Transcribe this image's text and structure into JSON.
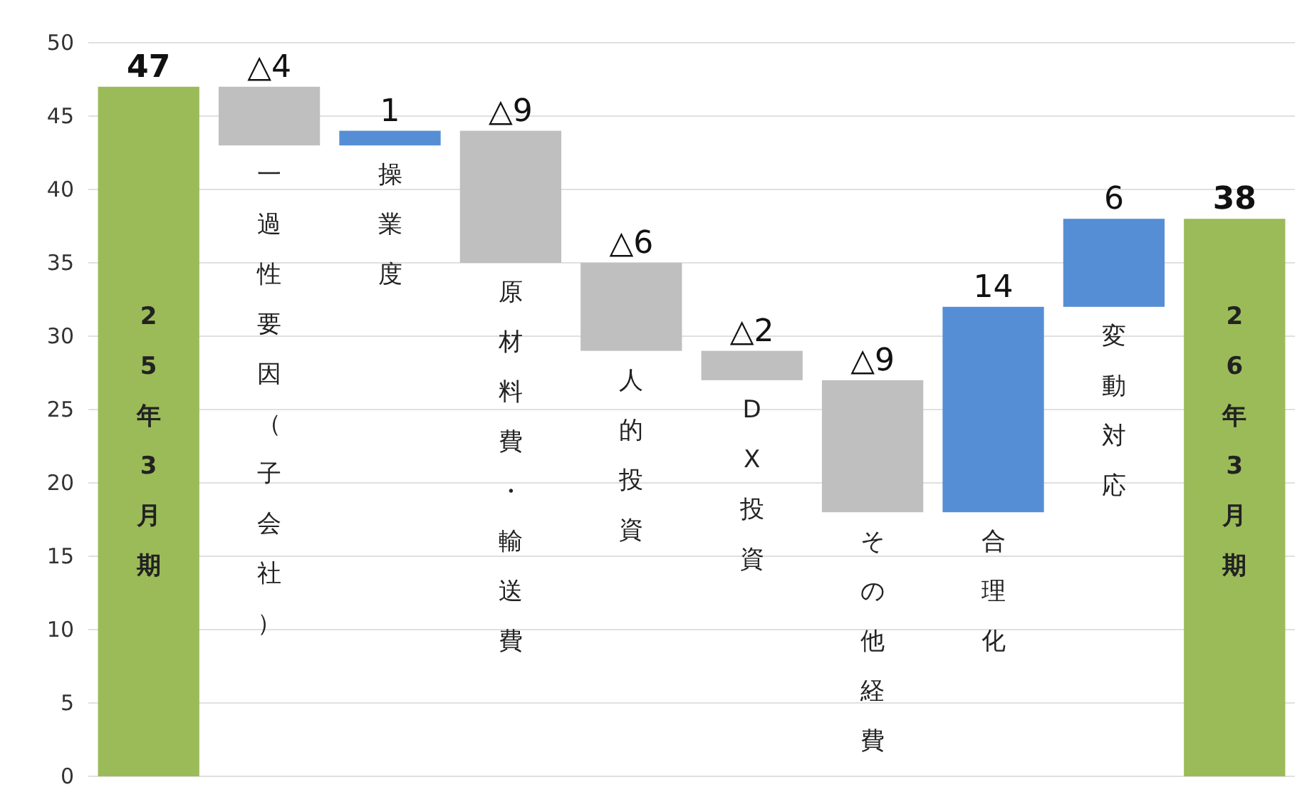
{
  "chart_data": {
    "type": "bar",
    "categories": [
      "25年3月期",
      "一過性要因（子会社）",
      "操業度",
      "原材料費・輸送費",
      "人的投資",
      "DX投資",
      "その他経費",
      "合理化",
      "変動対応",
      "26年3月期"
    ],
    "values": [
      47,
      -4,
      1,
      -9,
      -6,
      -2,
      -9,
      14,
      6,
      38
    ],
    "base": [
      0,
      47,
      43,
      44,
      35,
      29,
      27,
      18,
      32,
      0
    ],
    "colors": [
      "#9bbb59",
      "#bfbfbf",
      "#558ed5",
      "#bfbfbf",
      "#bfbfbf",
      "#bfbfbf",
      "#bfbfbf",
      "#558ed5",
      "#558ed5",
      "#9bbb59"
    ],
    "value_labels": [
      "47",
      "△4",
      "1",
      "△9",
      "△6",
      "△2",
      "△9",
      "14",
      "6",
      "38"
    ],
    "ylim": [
      0,
      50
    ],
    "yticks": [
      0,
      5,
      10,
      15,
      20,
      25,
      30,
      35,
      40,
      45,
      50
    ],
    "grid": "y"
  }
}
